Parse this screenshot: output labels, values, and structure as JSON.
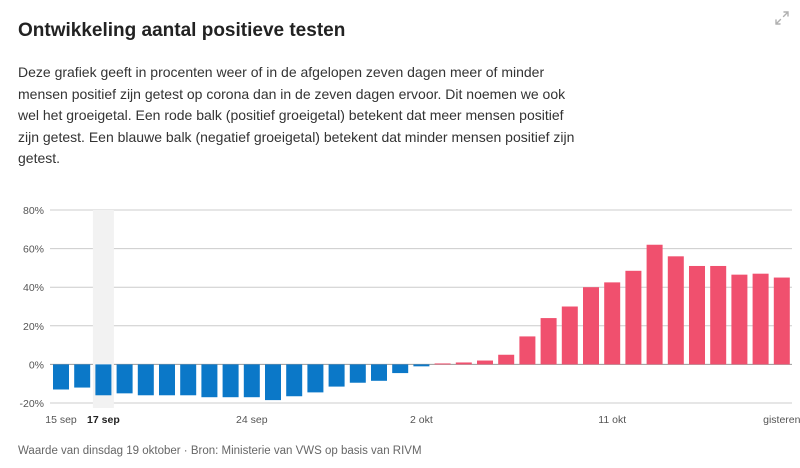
{
  "header": {
    "title": "Ontwikkeling aantal positieve testen",
    "description": "Deze grafiek geeft in procenten weer of in de afgelopen zeven dagen meer of minder mensen positief zijn getest op corona dan in de zeven dagen ervoor. Dit noemen we ook wel het groeigetal. Een rode balk (positief groeigetal) betekent dat meer mensen positief zijn getest. Een blauwe balk (negatief groeigetal) betekent dat minder mensen positief zijn getest."
  },
  "icons": {
    "expand": "expand-icon"
  },
  "colors": {
    "positive": "#f0506e",
    "negative": "#0b78c8",
    "grid": "#cccccc",
    "highlight": "#f2f2f2",
    "axis_text": "#555555"
  },
  "chart_data": {
    "type": "bar",
    "title": "Ontwikkeling aantal positieve testen",
    "xlabel": "",
    "ylabel": "",
    "ylim": [
      -20,
      80
    ],
    "yticks": [
      -20,
      0,
      20,
      40,
      60,
      80
    ],
    "ytick_labels": [
      "-20%",
      "0%",
      "20%",
      "40%",
      "60%",
      "80%"
    ],
    "highlighted_category": "17 sep",
    "categories": [
      "15 sep",
      "16 sep",
      "17 sep",
      "18 sep",
      "19 sep",
      "20 sep",
      "21 sep",
      "22 sep",
      "23 sep",
      "24 sep",
      "25 sep",
      "26 sep",
      "27 sep",
      "28 sep",
      "29 sep",
      "30 sep",
      "1 okt",
      "2 okt",
      "3 okt",
      "4 okt",
      "5 okt",
      "6 okt",
      "7 okt",
      "8 okt",
      "9 okt",
      "10 okt",
      "11 okt",
      "12 okt",
      "13 okt",
      "14 okt",
      "15 okt",
      "16 okt",
      "17 okt",
      "18 okt",
      "gisteren"
    ],
    "xtick_labels": [
      {
        "index": 0,
        "label": "15 sep",
        "bold": false
      },
      {
        "index": 2,
        "label": "17 sep",
        "bold": true
      },
      {
        "index": 9,
        "label": "24 sep",
        "bold": false
      },
      {
        "index": 17,
        "label": "2 okt",
        "bold": false
      },
      {
        "index": 26,
        "label": "11 okt",
        "bold": false
      },
      {
        "index": 34,
        "label": "gisteren",
        "bold": false
      }
    ],
    "values": [
      -13,
      -12,
      -16,
      -15,
      -16,
      -16,
      -16,
      -17,
      -17,
      -17,
      -18.5,
      -16.5,
      -14.5,
      -11.5,
      -9.5,
      -8.5,
      -4.5,
      -1,
      0.5,
      1,
      2,
      5,
      14.5,
      24,
      30,
      40,
      42.5,
      48.5,
      62,
      56,
      51,
      51,
      46.5,
      47,
      45
    ]
  },
  "footer": {
    "source": "Waarde van dinsdag 19 oktober · Bron: Ministerie van VWS op basis van RIVM"
  }
}
